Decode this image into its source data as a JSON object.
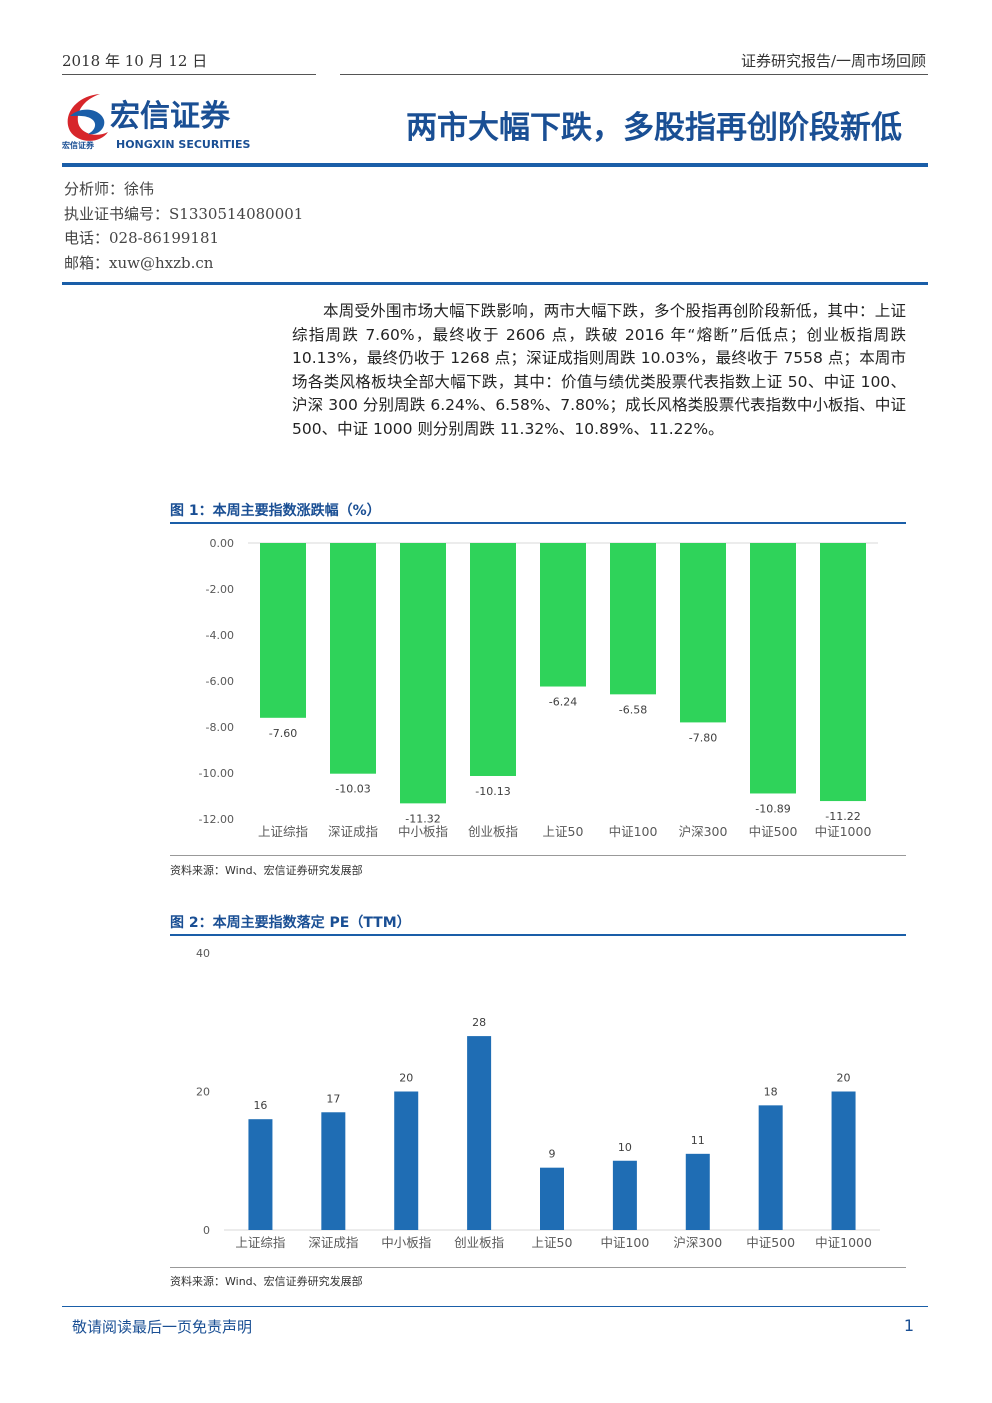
{
  "header": {
    "date": "2018 年 10 月 12 日",
    "report_type": "证券研究报告/一周市场回顾",
    "logo_cn": "宏信证券",
    "logo_en": "HONGXIN SECURITIES",
    "logo_small": "宏信证券",
    "title": "两市大幅下跌，多股指再创阶段新低"
  },
  "analyst": [
    "分析师：徐伟",
    "执业证书编号：S1330514080001",
    "电话：028-86199181",
    "邮箱：xuw@hxzb.cn"
  ],
  "summary": "本周受外围市场大幅下跌影响，两市大幅下跌，多个股指再创阶段新低，其中：上证综指周跌 7.60%，最终收于 2606 点，跌破 2016 年“熔断”后低点；创业板指周跌 10.13%，最终仍收于 1268 点；深证成指则周跌 10.03%，最终收于 7558 点；本周市场各类风格板块全部大幅下跌，其中：价值与绩优类股票代表指数上证 50、中证 100、沪深 300 分别周跌 6.24%、6.58%、7.80%；成长风格类股票代表指数中小板指、中证 500、中证 1000 则分别周跌 11.32%、10.89%、11.22%。",
  "chart_data": [
    {
      "type": "bar",
      "title": "图 1：本周主要指数涨跌幅（%）",
      "categories": [
        "上证综指",
        "深证成指",
        "中小板指",
        "创业板指",
        "上证50",
        "中证100",
        "沪深300",
        "中证500",
        "中证1000"
      ],
      "values": [
        -7.6,
        -10.03,
        -11.32,
        -10.13,
        -6.24,
        -6.58,
        -7.8,
        -10.89,
        -11.22
      ],
      "value_labels": [
        "-7.60",
        "-10.03",
        "-11.32",
        "-10.13",
        "-6.24",
        "-6.58",
        "-7.80",
        "-10.89",
        "-11.22"
      ],
      "color": "#2fd35a",
      "ylim": [
        -12,
        0
      ],
      "yticks": [
        {
          "value": 0,
          "label": "0.00"
        },
        {
          "value": -2,
          "label": "-2.00"
        },
        {
          "value": -4,
          "label": "-4.00"
        },
        {
          "value": -6,
          "label": "-6.00"
        },
        {
          "value": -8,
          "label": "-8.00"
        },
        {
          "value": -10,
          "label": "-10.00"
        },
        {
          "value": -12,
          "label": "-12.00"
        }
      ],
      "grid": false,
      "source": "资料来源：Wind、宏信证券研究发展部"
    },
    {
      "type": "bar",
      "title": "图 2：本周主要指数落定 PE（TTM）",
      "categories": [
        "上证综指",
        "深证成指",
        "中小板指",
        "创业板指",
        "上证50",
        "中证100",
        "沪深300",
        "中证500",
        "中证1000"
      ],
      "values": [
        16,
        17,
        20,
        28,
        9,
        10,
        11,
        18,
        20
      ],
      "color": "#1f6db4",
      "ylim": [
        0,
        40
      ],
      "yticks": [
        0,
        20,
        40
      ],
      "grid": false,
      "source": "资料来源：Wind、宏信证券研究发展部"
    }
  ],
  "footer": {
    "disclaimer": "敬请阅读最后一页免责声明",
    "page": 1
  }
}
